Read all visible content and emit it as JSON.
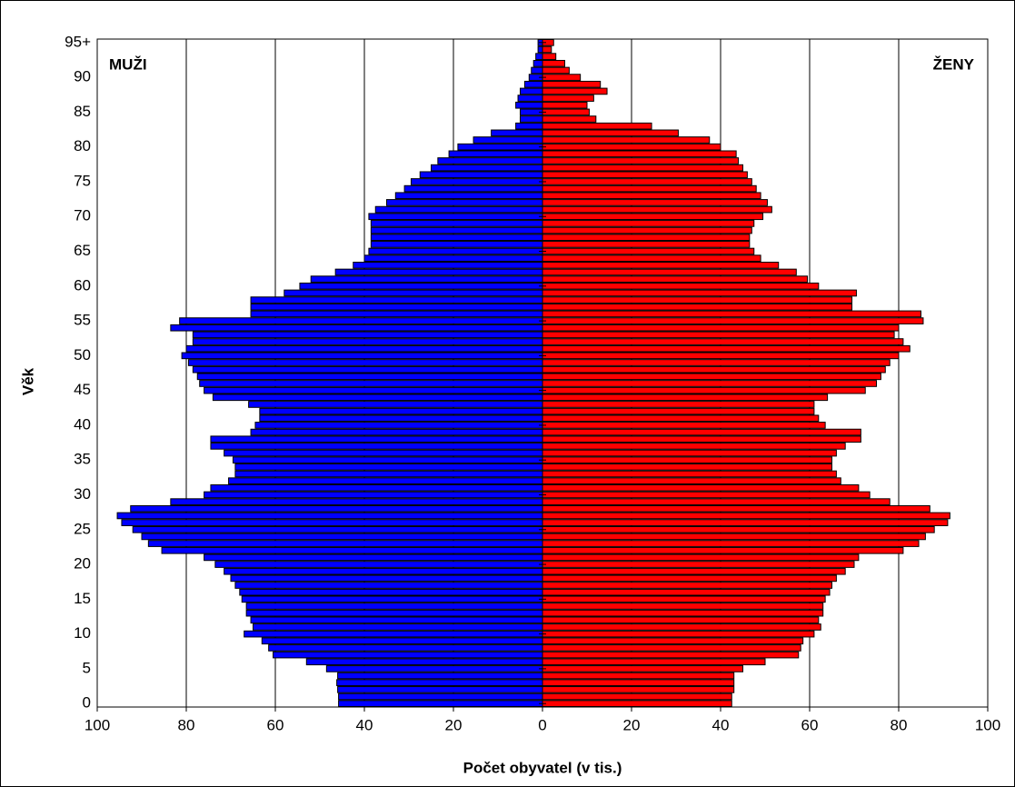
{
  "chart_data": {
    "type": "pyramid",
    "x_label": "Počet obyvatel (v tis.)",
    "y_label": "Věk",
    "categories": [
      "0",
      null,
      null,
      null,
      null,
      "5",
      null,
      null,
      null,
      null,
      "10",
      null,
      null,
      null,
      null,
      "15",
      null,
      null,
      null,
      null,
      "20",
      null,
      null,
      null,
      null,
      "25",
      null,
      null,
      null,
      null,
      "30",
      null,
      null,
      null,
      null,
      "35",
      null,
      null,
      null,
      null,
      "40",
      null,
      null,
      null,
      null,
      "45",
      null,
      null,
      null,
      null,
      "50",
      null,
      null,
      null,
      null,
      "55",
      null,
      null,
      null,
      null,
      "60",
      null,
      null,
      null,
      null,
      "65",
      null,
      null,
      null,
      null,
      "70",
      null,
      null,
      null,
      null,
      "75",
      null,
      null,
      null,
      null,
      "80",
      null,
      null,
      null,
      null,
      "85",
      null,
      null,
      null,
      null,
      "90",
      null,
      null,
      null,
      null,
      "95+"
    ],
    "series": [
      {
        "name": "MUŽI",
        "color": "#0000ff",
        "values": [
          45.8,
          45.8,
          46,
          46.2,
          46,
          48.5,
          53,
          60.5,
          61.5,
          63,
          67,
          65,
          65.5,
          66.5,
          66.5,
          67.5,
          68,
          69,
          70,
          71.5,
          73.5,
          76,
          85.5,
          88.5,
          90,
          92,
          94.5,
          95.5,
          92.5,
          83.5,
          76,
          74.5,
          70.5,
          69,
          69,
          69.5,
          71.5,
          74.5,
          74.5,
          65.5,
          64.5,
          63.5,
          63.5,
          66,
          74,
          76,
          77,
          77.5,
          78.5,
          79.5,
          81,
          80,
          78.5,
          78.5,
          83.5,
          81.5,
          65.5,
          65.5,
          65.5,
          58,
          54.5,
          52,
          46.5,
          42.5,
          40,
          39,
          38.5,
          38.5,
          38.5,
          38.5,
          39,
          37.5,
          35,
          33,
          31,
          29.5,
          27.5,
          25,
          23.5,
          21,
          19,
          15.5,
          11.5,
          6,
          5,
          5,
          6,
          5.5,
          5,
          4,
          3,
          2.5,
          2,
          1.5,
          1,
          1
        ]
      },
      {
        "name": "ŽENY",
        "color": "#ff0000",
        "values": [
          42.5,
          42.5,
          43,
          43,
          43,
          45,
          50,
          57.5,
          58,
          58.5,
          61,
          62.5,
          62,
          63,
          63,
          63.5,
          64.5,
          65,
          66,
          68,
          70,
          71,
          81,
          84.5,
          86,
          88,
          91,
          91.5,
          87,
          78,
          73.5,
          71,
          67,
          66,
          65,
          65,
          66,
          68,
          71.5,
          71.5,
          63.5,
          62,
          61,
          61,
          64,
          72.5,
          75,
          76,
          77,
          78,
          80,
          82.5,
          81,
          79,
          80,
          85.5,
          85,
          69.5,
          69.5,
          70.5,
          62,
          59.5,
          57,
          53,
          49,
          47.5,
          46.5,
          46.5,
          47,
          47.5,
          49.5,
          51.5,
          50.5,
          49,
          48,
          47,
          46,
          45,
          44,
          43.5,
          40,
          37.5,
          30.5,
          24.5,
          12,
          10.5,
          10,
          11.5,
          14.5,
          13,
          8.5,
          6,
          5,
          3,
          2,
          2.5
        ]
      }
    ],
    "xlim": [
      0,
      100
    ],
    "xticks": [
      0,
      20,
      40,
      60,
      80,
      100
    ],
    "grid": true
  }
}
